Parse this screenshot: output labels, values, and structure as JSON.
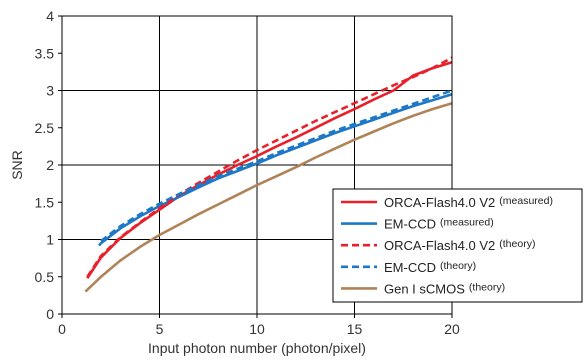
{
  "chart_data": {
    "type": "line",
    "title": "",
    "xlabel": "Input photon number (photon/pixel)",
    "ylabel": "SNR",
    "xlim": [
      0,
      20
    ],
    "ylim": [
      0,
      4
    ],
    "xticks": [
      "0",
      "5",
      "10",
      "15",
      "20"
    ],
    "yticks": [
      "0",
      "0.5",
      "1",
      "1.5",
      "2",
      "2.5",
      "3",
      "3.5",
      "4"
    ],
    "grid": "vertical lines at x ticks, horizontal lines at integer y",
    "legend_position": "bottom-right",
    "series": [
      {
        "name": "ORCA-Flash4.0 V2",
        "note": "(measured)",
        "color": "#e8202a",
        "style": "solid",
        "x": [
          1.3,
          2,
          3,
          4,
          5,
          6,
          7,
          8,
          9,
          10,
          11,
          12,
          13,
          14,
          15,
          16,
          17,
          18,
          19,
          20
        ],
        "y": [
          0.48,
          0.76,
          1.02,
          1.22,
          1.4,
          1.58,
          1.73,
          1.87,
          2.0,
          2.12,
          2.25,
          2.37,
          2.5,
          2.63,
          2.75,
          2.88,
          3.0,
          3.2,
          3.3,
          3.38
        ]
      },
      {
        "name": "EM-CCD",
        "note": "(measured)",
        "color": "#1e78c8",
        "style": "solid",
        "x": [
          1.9,
          2,
          3,
          4,
          5,
          6,
          7,
          8,
          9,
          10,
          11,
          12,
          13,
          14,
          15,
          16,
          17,
          18,
          19,
          20
        ],
        "y": [
          0.92,
          0.95,
          1.15,
          1.31,
          1.45,
          1.57,
          1.7,
          1.82,
          1.92,
          2.02,
          2.13,
          2.23,
          2.33,
          2.43,
          2.52,
          2.61,
          2.7,
          2.79,
          2.87,
          2.95
        ]
      },
      {
        "name": "ORCA-Flash4.0 V2",
        "note": "(theory)",
        "color": "#e8202a",
        "style": "dashed",
        "x": [
          1.3,
          2,
          3,
          4,
          5,
          6,
          7,
          8,
          9,
          10,
          11,
          12,
          13,
          14,
          15,
          16,
          17,
          18,
          19,
          20
        ],
        "y": [
          0.5,
          0.78,
          1.03,
          1.23,
          1.42,
          1.6,
          1.76,
          1.91,
          2.06,
          2.2,
          2.33,
          2.46,
          2.59,
          2.71,
          2.83,
          2.95,
          3.07,
          3.18,
          3.3,
          3.44
        ]
      },
      {
        "name": "EM-CCD",
        "note": "(theory)",
        "color": "#1e78c8",
        "style": "dashed",
        "x": [
          2,
          3,
          4,
          5,
          6,
          7,
          8,
          9,
          10,
          11,
          12,
          13,
          14,
          15,
          16,
          17,
          18,
          19,
          20
        ],
        "y": [
          0.98,
          1.18,
          1.34,
          1.48,
          1.61,
          1.73,
          1.85,
          1.95,
          2.05,
          2.16,
          2.26,
          2.36,
          2.46,
          2.55,
          2.64,
          2.73,
          2.82,
          2.91,
          3.0
        ]
      },
      {
        "name": "Gen I sCMOS",
        "note": "(theory)",
        "color": "#b08257",
        "style": "solid",
        "x": [
          1.2,
          2,
          3,
          4,
          5,
          6,
          7,
          8,
          9,
          10,
          11,
          12,
          13,
          14,
          15,
          16,
          17,
          18,
          19,
          20
        ],
        "y": [
          0.3,
          0.5,
          0.72,
          0.9,
          1.06,
          1.2,
          1.34,
          1.47,
          1.6,
          1.73,
          1.85,
          1.97,
          2.1,
          2.22,
          2.34,
          2.45,
          2.56,
          2.66,
          2.75,
          2.83
        ]
      }
    ]
  }
}
